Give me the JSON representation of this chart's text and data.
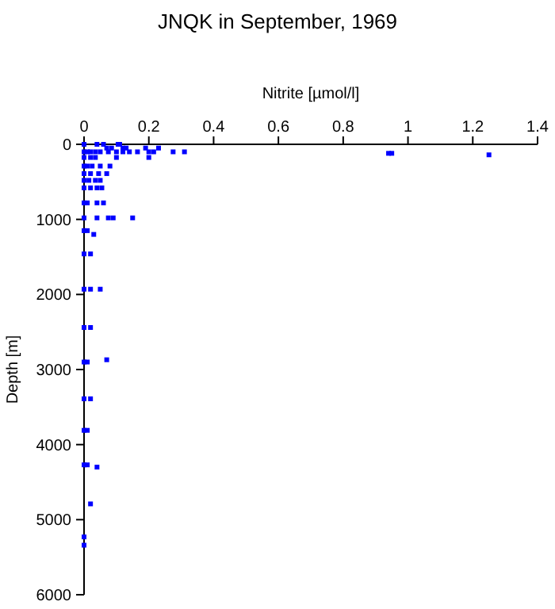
{
  "chart_data": {
    "type": "scatter",
    "title": "JNQK in September, 1969",
    "xlabel": "Nitrite [µmol/l]",
    "ylabel": "Depth [m]",
    "xlim": [
      0,
      1.4
    ],
    "xticks": [
      0,
      0.2,
      0.4,
      0.6,
      0.8,
      1,
      1.2,
      1.4
    ],
    "ylim": [
      6000,
      0
    ],
    "yticks": [
      0,
      1000,
      2000,
      3000,
      4000,
      5000,
      6000
    ],
    "grid": false,
    "marker": "square",
    "series": [
      {
        "color": "#0000ff",
        "x": [
          0,
          0.04,
          0.06,
          0.105,
          0.11,
          0.07,
          0.085,
          0.12,
          0.13,
          0.19,
          0.23,
          0,
          0.01,
          0.02,
          0.035,
          0.05,
          0.075,
          0.1,
          0.12,
          0.14,
          0.165,
          0.2,
          0.215,
          0.275,
          0.31,
          0.94,
          0.95,
          1.25,
          0,
          0.02,
          0.035,
          0.1,
          0.2,
          0,
          0.01,
          0.025,
          0.05,
          0.08,
          0,
          0.02,
          0.045,
          0.07,
          0,
          0.015,
          0.035,
          0.05,
          0,
          0.02,
          0.04,
          0.055,
          0,
          0.01,
          0.04,
          0.06,
          0,
          0.04,
          0.075,
          0.09,
          0.15,
          0,
          0.01,
          0.03,
          0,
          0.02,
          0,
          0.02,
          0.05,
          0,
          0.02,
          0,
          0.01,
          0.07,
          0,
          0.02,
          0,
          0.01,
          0,
          0.01,
          0.04,
          0.02,
          0,
          0
        ],
        "values": [
          0,
          0,
          0,
          0,
          0,
          50,
          50,
          50,
          50,
          50,
          50,
          100,
          100,
          100,
          100,
          100,
          100,
          100,
          100,
          100,
          100,
          100,
          100,
          100,
          100,
          120,
          120,
          140,
          175,
          175,
          175,
          175,
          175,
          290,
          290,
          290,
          290,
          290,
          390,
          390,
          390,
          390,
          480,
          480,
          480,
          480,
          580,
          580,
          580,
          580,
          780,
          780,
          780,
          780,
          980,
          980,
          980,
          980,
          980,
          1150,
          1150,
          1200,
          1460,
          1460,
          1930,
          1930,
          1930,
          2440,
          2440,
          2900,
          2900,
          2870,
          3390,
          3390,
          3810,
          3810,
          4270,
          4270,
          4300,
          4790,
          5230,
          5340
        ]
      }
    ]
  }
}
